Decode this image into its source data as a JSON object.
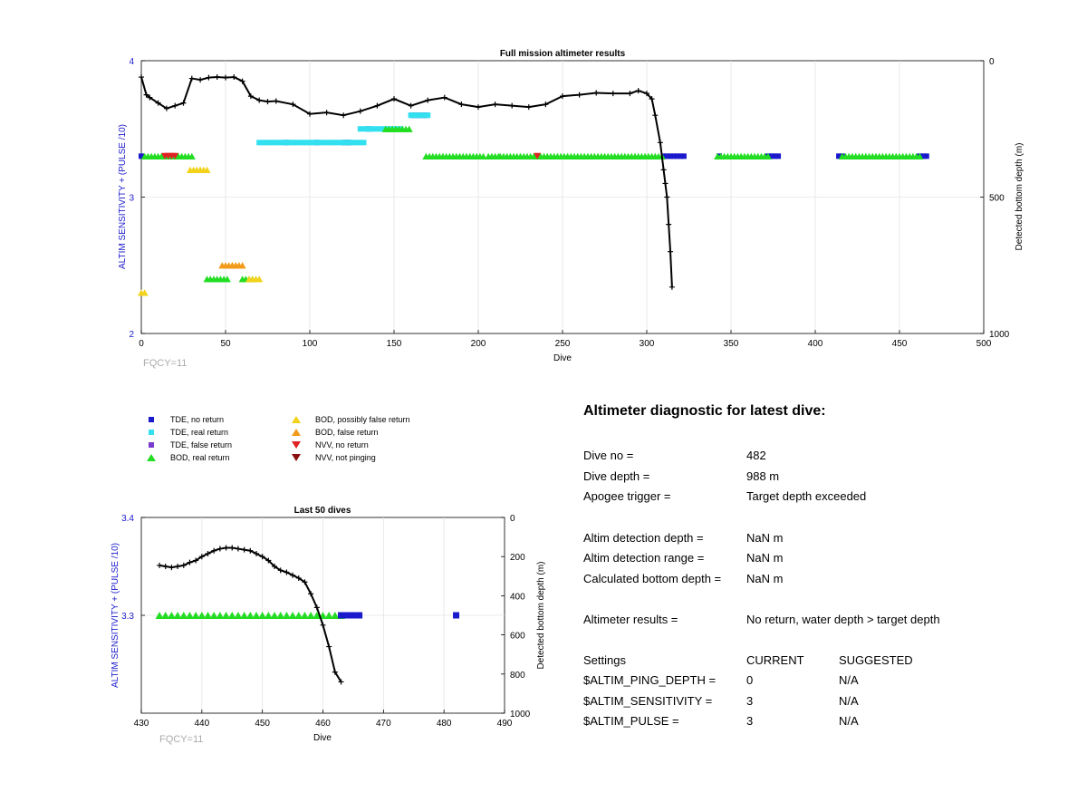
{
  "main": {
    "title": "Full mission altimeter results",
    "xlabel": "Dive",
    "ylabel_left": "ALTIM SENSITIVITY + (PULSE /10)",
    "ylabel_right": "Detected bottom depth (m)",
    "xticks": [
      "0",
      "50",
      "100",
      "150",
      "200",
      "250",
      "300",
      "350",
      "400",
      "450",
      "500"
    ],
    "yticks_left": [
      "2",
      "3",
      "4"
    ],
    "yticks_right": [
      "0",
      "500",
      "1000"
    ],
    "fqcy": "FQCY=11"
  },
  "sub": {
    "title": "Last 50 dives",
    "xlabel": "Dive",
    "ylabel_left": "ALTIM SENSITIVITY + (PULSE /10)",
    "ylabel_right": "Detected bottom depth (m)",
    "xticks": [
      "430",
      "440",
      "450",
      "460",
      "470",
      "480",
      "490"
    ],
    "yticks_left": [
      "3.3",
      "3.4"
    ],
    "yticks_right": [
      "0",
      "200",
      "400",
      "600",
      "800",
      "1000"
    ],
    "fqcy": "FQCY=11"
  },
  "legend": {
    "items": [
      {
        "label": "TDE, no return",
        "color": "#1a1acc",
        "shape": "square"
      },
      {
        "label": "TDE, real return",
        "color": "#33e0f0",
        "shape": "square"
      },
      {
        "label": "TDE, false return",
        "color": "#7a3ccc",
        "shape": "square"
      },
      {
        "label": "BOD, real return",
        "color": "#22dd22",
        "shape": "triangle-up"
      },
      {
        "label": "BOD, possibly false return",
        "color": "#f2d21a",
        "shape": "triangle-up"
      },
      {
        "label": "BOD, false return",
        "color": "#f29a1a",
        "shape": "triangle-up"
      },
      {
        "label": "NVV, no return",
        "color": "#e02222",
        "shape": "triangle-down"
      },
      {
        "label": "NVV, not pinging",
        "color": "#8a1010",
        "shape": "triangle-down"
      }
    ]
  },
  "diagnostic": {
    "title": "Altimeter diagnostic for latest dive:",
    "rows": [
      {
        "label": "Dive no =",
        "value": "482"
      },
      {
        "label": "Dive depth =",
        "value": "988 m"
      },
      {
        "label": "Apogee trigger =",
        "value": "Target depth exceeded"
      },
      {
        "label": "Altim detection depth =",
        "value": "NaN m"
      },
      {
        "label": "Altim detection range =",
        "value": "NaN m"
      },
      {
        "label": "Calculated bottom depth =",
        "value": "NaN m"
      },
      {
        "label": "Altimeter results =",
        "value": "No return, water depth > target depth"
      }
    ],
    "settings_header": {
      "label": "Settings",
      "current": "CURRENT",
      "suggested": "SUGGESTED"
    },
    "settings": [
      {
        "label": "$ALTIM_PING_DEPTH =",
        "current": "0",
        "suggested": "N/A"
      },
      {
        "label": "$ALTIM_SENSITIVITY =",
        "current": "3",
        "suggested": "N/A"
      },
      {
        "label": "$ALTIM_PULSE =",
        "current": "3",
        "suggested": "N/A"
      }
    ]
  },
  "chart_data": [
    {
      "type": "scatter",
      "title": "Full mission altimeter results",
      "xlabel": "Dive",
      "ylabel": "ALTIM SENSITIVITY + (PULSE /10)",
      "ylabel_right": "Detected bottom depth (m)",
      "xlim": [
        0,
        500
      ],
      "ylim": [
        2,
        4
      ],
      "ylim_right": [
        1000,
        0
      ],
      "grid": true,
      "series": [
        {
          "name": "TDE, no return",
          "segments": [
            [
              0,
              1,
              3.3
            ],
            [
              310,
              322,
              3.3
            ],
            [
              343,
              344,
              3.3
            ],
            [
              372,
              378,
              3.3
            ],
            [
              414,
              416,
              3.3
            ],
            [
              462,
              467,
              3.3
            ],
            [
              161,
              170,
              3.6
            ],
            [
              86,
              87,
              3.4
            ],
            [
              104,
              105,
              3.4
            ],
            [
              121,
              123,
              3.4
            ],
            [
              135,
              136,
              3.5
            ]
          ]
        },
        {
          "name": "TDE, real return",
          "segments": [
            [
              70,
              132,
              3.4
            ],
            [
              130,
              155,
              3.5
            ],
            [
              160,
              170,
              3.6
            ]
          ]
        },
        {
          "name": "BOD, real return",
          "segments": [
            [
              2,
              30,
              3.3
            ],
            [
              169,
              204,
              3.3
            ],
            [
              206,
              212,
              3.3
            ],
            [
              213,
              310,
              3.3
            ],
            [
              342,
              372,
              3.3
            ],
            [
              416,
              462,
              3.3
            ],
            [
              145,
              160,
              3.5
            ],
            [
              39,
              51,
              2.4
            ],
            [
              60,
              66,
              2.4
            ]
          ]
        },
        {
          "name": "BOD, possibly false return",
          "segments": [
            [
              0,
              3,
              2.3
            ],
            [
              29,
              40,
              3.2
            ],
            [
              54,
              58,
              2.5
            ],
            [
              64,
              70,
              2.4
            ]
          ]
        },
        {
          "name": "BOD, false return",
          "segments": [
            [
              48,
              60,
              2.5
            ]
          ]
        },
        {
          "name": "NVV, no return",
          "segments": [
            [
              14,
              21,
              3.3
            ],
            [
              235,
              236,
              3.3
            ]
          ]
        }
      ],
      "bottom_depth_series": {
        "x": [
          0,
          3,
          5,
          10,
          15,
          20,
          25,
          30,
          35,
          40,
          45,
          50,
          55,
          60,
          65,
          70,
          75,
          80,
          90,
          100,
          110,
          120,
          130,
          140,
          150,
          160,
          170,
          180,
          190,
          200,
          210,
          220,
          230,
          240,
          250,
          260,
          270,
          280,
          290,
          295,
          300,
          303,
          305,
          308,
          310,
          311,
          312,
          313,
          314,
          315
        ],
        "y": [
          60,
          125,
          135,
          155,
          175,
          165,
          155,
          65,
          70,
          62,
          60,
          62,
          60,
          75,
          130,
          145,
          150,
          148,
          160,
          195,
          190,
          200,
          185,
          165,
          140,
          165,
          145,
          135,
          160,
          170,
          160,
          165,
          170,
          160,
          130,
          125,
          118,
          120,
          120,
          110,
          120,
          140,
          200,
          300,
          400,
          450,
          500,
          600,
          700,
          830
        ]
      }
    },
    {
      "type": "scatter",
      "title": "Last 50 dives",
      "xlabel": "Dive",
      "ylabel": "ALTIM SENSITIVITY + (PULSE /10)",
      "ylabel_right": "Detected bottom depth (m)",
      "xlim": [
        430,
        490
      ],
      "ylim": [
        3.2,
        3.4
      ],
      "ylim_right": [
        1000,
        0
      ],
      "grid": true,
      "series": [
        {
          "name": "BOD, real return",
          "x": [
            433,
            434,
            435,
            436,
            437,
            438,
            439,
            440,
            441,
            442,
            443,
            444,
            445,
            446,
            447,
            448,
            449,
            450,
            451,
            452,
            453,
            454,
            455,
            456,
            457,
            458,
            459,
            460,
            461,
            462,
            463
          ],
          "y": 3.3
        },
        {
          "name": "TDE, no return",
          "x": [
            463,
            464,
            465,
            466,
            482
          ],
          "y": 3.3
        }
      ],
      "bottom_depth_series": {
        "x": [
          433,
          434,
          435,
          436,
          437,
          438,
          439,
          440,
          441,
          442,
          443,
          444,
          445,
          446,
          447,
          448,
          449,
          450,
          451,
          452,
          453,
          454,
          455,
          456,
          457,
          458,
          459,
          460,
          461,
          462,
          463
        ],
        "y": [
          245,
          250,
          255,
          250,
          245,
          230,
          220,
          200,
          185,
          170,
          160,
          155,
          155,
          160,
          165,
          170,
          185,
          200,
          220,
          250,
          270,
          280,
          295,
          310,
          330,
          390,
          460,
          550,
          660,
          790,
          840
        ]
      }
    }
  ]
}
